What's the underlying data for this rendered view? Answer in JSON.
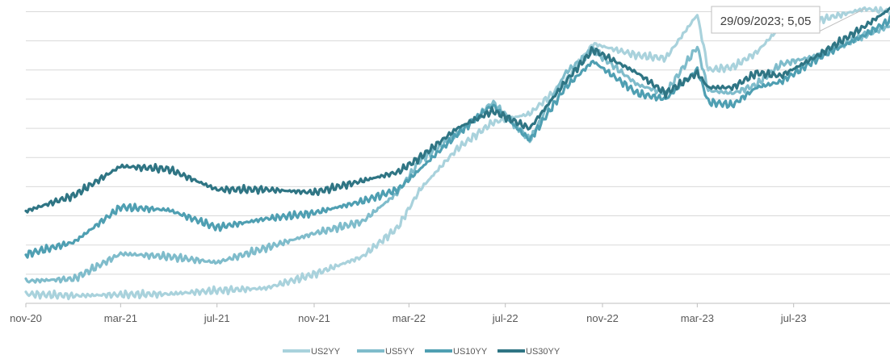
{
  "chart_data": {
    "type": "line",
    "title": "",
    "xlabel": "",
    "ylabel": "",
    "x_tick_labels": [
      "nov-20",
      "mar-21",
      "jul-21",
      "nov-21",
      "mar-22",
      "jul-22",
      "nov-22",
      "mar-23",
      "jul-23"
    ],
    "x_tick_dates": [
      "2020-11-01",
      "2021-03-01",
      "2021-07-01",
      "2021-11-01",
      "2022-03-01",
      "2022-07-01",
      "2022-11-01",
      "2023-03-01",
      "2023-07-01"
    ],
    "x_range": [
      "2020-11-01",
      "2023-10-31"
    ],
    "ylim": [
      0,
      5.2
    ],
    "y_gridlines": [
      0.5,
      1.0,
      1.5,
      2.0,
      2.5,
      3.0,
      3.5,
      4.0,
      4.5,
      5.0
    ],
    "grid": true,
    "legend_position": "bottom",
    "annotation": {
      "text": "29/09/2023; 5,05",
      "date": "2023-09-29",
      "value": 5.05
    },
    "series": [
      {
        "name": "US2YY",
        "color": "#a9d2dc",
        "points": [
          [
            "2020-11-01",
            0.16
          ],
          [
            "2021-01-01",
            0.13
          ],
          [
            "2021-03-01",
            0.15
          ],
          [
            "2021-05-01",
            0.16
          ],
          [
            "2021-07-01",
            0.22
          ],
          [
            "2021-09-01",
            0.26
          ],
          [
            "2021-11-01",
            0.5
          ],
          [
            "2022-01-01",
            0.8
          ],
          [
            "2022-02-15",
            1.3
          ],
          [
            "2022-03-15",
            1.95
          ],
          [
            "2022-05-01",
            2.65
          ],
          [
            "2022-06-15",
            3.1
          ],
          [
            "2022-08-01",
            3.25
          ],
          [
            "2022-09-15",
            3.8
          ],
          [
            "2022-10-20",
            4.45
          ],
          [
            "2022-12-15",
            4.25
          ],
          [
            "2023-01-20",
            4.2
          ],
          [
            "2023-03-01",
            4.95
          ],
          [
            "2023-03-15",
            4.0
          ],
          [
            "2023-04-15",
            4.05
          ],
          [
            "2023-05-15",
            4.3
          ],
          [
            "2023-06-15",
            4.75
          ],
          [
            "2023-08-01",
            4.85
          ],
          [
            "2023-09-29",
            5.05
          ],
          [
            "2023-10-31",
            5.0
          ]
        ]
      },
      {
        "name": "US5YY",
        "color": "#7fbccb",
        "points": [
          [
            "2020-11-01",
            0.38
          ],
          [
            "2021-01-01",
            0.42
          ],
          [
            "2021-03-01",
            0.85
          ],
          [
            "2021-05-01",
            0.8
          ],
          [
            "2021-07-01",
            0.7
          ],
          [
            "2021-09-01",
            0.95
          ],
          [
            "2021-11-01",
            1.2
          ],
          [
            "2022-01-01",
            1.4
          ],
          [
            "2022-02-15",
            1.9
          ],
          [
            "2022-03-15",
            2.45
          ],
          [
            "2022-05-01",
            2.9
          ],
          [
            "2022-06-15",
            3.45
          ],
          [
            "2022-08-01",
            2.8
          ],
          [
            "2022-09-15",
            3.95
          ],
          [
            "2022-10-20",
            4.35
          ],
          [
            "2022-12-15",
            3.75
          ],
          [
            "2023-01-20",
            3.6
          ],
          [
            "2023-03-01",
            4.4
          ],
          [
            "2023-03-15",
            3.65
          ],
          [
            "2023-04-15",
            3.6
          ],
          [
            "2023-05-15",
            3.75
          ],
          [
            "2023-06-15",
            4.1
          ],
          [
            "2023-08-01",
            4.25
          ],
          [
            "2023-09-29",
            4.6
          ],
          [
            "2023-10-31",
            4.75
          ]
        ]
      },
      {
        "name": "US10YY",
        "color": "#4f9fb2",
        "points": [
          [
            "2020-11-01",
            0.84
          ],
          [
            "2021-01-01",
            1.05
          ],
          [
            "2021-03-01",
            1.65
          ],
          [
            "2021-05-01",
            1.6
          ],
          [
            "2021-07-01",
            1.3
          ],
          [
            "2021-09-01",
            1.45
          ],
          [
            "2021-11-01",
            1.55
          ],
          [
            "2022-01-01",
            1.75
          ],
          [
            "2022-02-15",
            1.95
          ],
          [
            "2022-03-15",
            2.3
          ],
          [
            "2022-05-01",
            2.9
          ],
          [
            "2022-06-15",
            3.4
          ],
          [
            "2022-08-01",
            2.8
          ],
          [
            "2022-09-15",
            3.7
          ],
          [
            "2022-10-20",
            4.15
          ],
          [
            "2022-12-15",
            3.6
          ],
          [
            "2023-01-20",
            3.5
          ],
          [
            "2023-03-01",
            4.0
          ],
          [
            "2023-03-15",
            3.45
          ],
          [
            "2023-04-15",
            3.4
          ],
          [
            "2023-05-15",
            3.7
          ],
          [
            "2023-06-15",
            3.8
          ],
          [
            "2023-08-01",
            4.2
          ],
          [
            "2023-09-29",
            4.6
          ],
          [
            "2023-10-31",
            4.85
          ]
        ]
      },
      {
        "name": "US30YY",
        "color": "#2f7584",
        "points": [
          [
            "2020-11-01",
            1.58
          ],
          [
            "2021-01-01",
            1.85
          ],
          [
            "2021-03-01",
            2.35
          ],
          [
            "2021-05-01",
            2.3
          ],
          [
            "2021-07-01",
            1.95
          ],
          [
            "2021-09-01",
            1.95
          ],
          [
            "2021-11-01",
            1.9
          ],
          [
            "2022-01-01",
            2.1
          ],
          [
            "2022-02-15",
            2.25
          ],
          [
            "2022-03-15",
            2.5
          ],
          [
            "2022-05-01",
            3.0
          ],
          [
            "2022-06-15",
            3.3
          ],
          [
            "2022-08-01",
            3.0
          ],
          [
            "2022-09-15",
            3.8
          ],
          [
            "2022-10-20",
            4.35
          ],
          [
            "2022-12-15",
            3.95
          ],
          [
            "2023-01-20",
            3.6
          ],
          [
            "2023-03-01",
            3.95
          ],
          [
            "2023-03-15",
            3.7
          ],
          [
            "2023-04-15",
            3.7
          ],
          [
            "2023-05-15",
            3.95
          ],
          [
            "2023-06-15",
            3.9
          ],
          [
            "2023-08-01",
            4.25
          ],
          [
            "2023-09-29",
            4.75
          ],
          [
            "2023-10-31",
            5.05
          ]
        ]
      }
    ]
  }
}
